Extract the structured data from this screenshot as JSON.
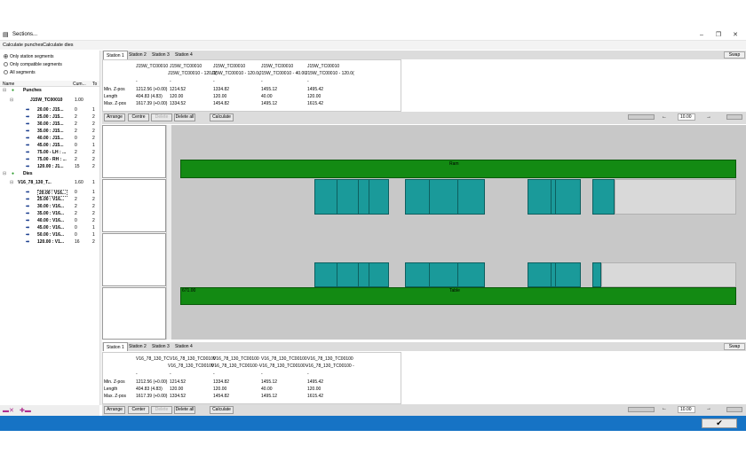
{
  "window": {
    "title": "Sections..."
  },
  "menu": {
    "calc_punches": "Calculate punches",
    "calc_dies": "Calculate dies"
  },
  "filters": [
    {
      "label": "Only station segments",
      "selected": true
    },
    {
      "label": "Only compatible segments",
      "selected": false
    },
    {
      "label": "All segments",
      "selected": false
    }
  ],
  "tree": {
    "headers": {
      "name": "Name",
      "cum": "Cum...",
      "to": "To"
    },
    "punches_label": "Punches",
    "punch_tool": {
      "name": "J15W_TC00010",
      "cum": "1.00"
    },
    "punch_rows": [
      {
        "name": "20.00 : J15...",
        "cum": "0",
        "to": "1"
      },
      {
        "name": "25.00 : J15...",
        "cum": "2",
        "to": "2"
      },
      {
        "name": "30.00 : J15...",
        "cum": "2",
        "to": "2"
      },
      {
        "name": "35.00 : J15...",
        "cum": "2",
        "to": "2"
      },
      {
        "name": "40.00 : J15...",
        "cum": "0",
        "to": "2"
      },
      {
        "name": "45.00 : J15...",
        "cum": "0",
        "to": "1"
      },
      {
        "name": "75.00 - LH : ...",
        "cum": "2",
        "to": "2"
      },
      {
        "name": "75.00 - RH : ...",
        "cum": "2",
        "to": "2"
      },
      {
        "name": "120.00 : J1...",
        "cum": "15",
        "to": "2"
      }
    ],
    "dies_label": "Dies",
    "die_tool": {
      "name": "V16_78_130_T...",
      "cum": "1.60",
      "to": "1"
    },
    "die_rows": [
      {
        "name": "20.00 : V16...",
        "cum": "0",
        "to": "1"
      },
      {
        "name": "25.00 : V16...",
        "cum": "2",
        "to": "2"
      },
      {
        "name": "30.00 : V16...",
        "cum": "2",
        "to": "2"
      },
      {
        "name": "35.00 : V16...",
        "cum": "2",
        "to": "2"
      },
      {
        "name": "40.00 : V16...",
        "cum": "0",
        "to": "2"
      },
      {
        "name": "45.00 : V16...",
        "cum": "0",
        "to": "1"
      },
      {
        "name": "50.00 : V16...",
        "cum": "0",
        "to": "1"
      },
      {
        "name": "120.00 : V1...",
        "cum": "16",
        "to": "2"
      }
    ]
  },
  "top_tabs": [
    "Station 1",
    "Station 2",
    "Station 3",
    "Station 4"
  ],
  "swap_label": "Swap",
  "top_grid": {
    "col_headers": [
      "J15W_TC00010",
      "J15W_TC00010",
      "J15W_TC00010",
      "J15W_TC00010",
      "J15W_TC00010"
    ],
    "col_sub": [
      "",
      "J15W_TC00010 - 120.0(",
      "J15W_TC00010 - 120.0(",
      "J15W_TC00010 - 40.00",
      "J15W_TC00010 - 120.0("
    ],
    "dash_row": [
      "-",
      "-",
      "-",
      "-",
      "-"
    ],
    "rows": [
      {
        "label": "Min. Z-pos",
        "values": [
          "1212.56 (+0.00)",
          "1214.52",
          "1334.82",
          "1455.12",
          "1495.42"
        ]
      },
      {
        "label": "Length",
        "values": [
          "404.83 (4.83)",
          "120.00",
          "120.00",
          "40.00",
          "120.00"
        ]
      },
      {
        "label": "Max. Z-pos",
        "values": [
          "1617.39 (+0.00)",
          "1334.52",
          "1454.82",
          "1495.12",
          "1615.42"
        ]
      }
    ]
  },
  "bottom_grid": {
    "col_headers": [
      "V16_78_130_TC",
      "V16_78_130_TC00100",
      "V16_78_130_TC00100",
      "V16_78_130_TC00100",
      "V16_78_130_TC00100"
    ],
    "col_sub": [
      "",
      "V16_78_130_TC00100 -",
      "V16_78_130_TC00100 -",
      "V16_78_130_TC00100 -",
      "V16_78_130_TC00100 -"
    ],
    "dash_row": [
      "-",
      "-",
      "-",
      "-",
      "-"
    ],
    "rows": [
      {
        "label": "Min. Z-pos",
        "values": [
          "1212.56 (+0.00)",
          "1214.52",
          "1334.82",
          "1455.12",
          "1495.42"
        ]
      },
      {
        "label": "Length",
        "values": [
          "404.83 (4.83)",
          "120.00",
          "120.00",
          "40.00",
          "120.00"
        ]
      },
      {
        "label": "Max. Z-pos",
        "values": [
          "1617.39 (+0.00)",
          "1334.52",
          "1454.82",
          "1495.12",
          "1615.42"
        ]
      }
    ]
  },
  "toolbar": {
    "arrange": "Arrange",
    "centre": "Centre",
    "center": "Center",
    "delete": "Delete",
    "delete_all": "Delete all",
    "calculate": "Calculate",
    "step_value": "10.00"
  },
  "canvas": {
    "ram_label": "Ram",
    "table_label": "Table",
    "table_left_label": "671.00"
  },
  "colors": {
    "bar": "#138a13",
    "die": "#1a9a9a",
    "statusbar": "#1673c5"
  }
}
